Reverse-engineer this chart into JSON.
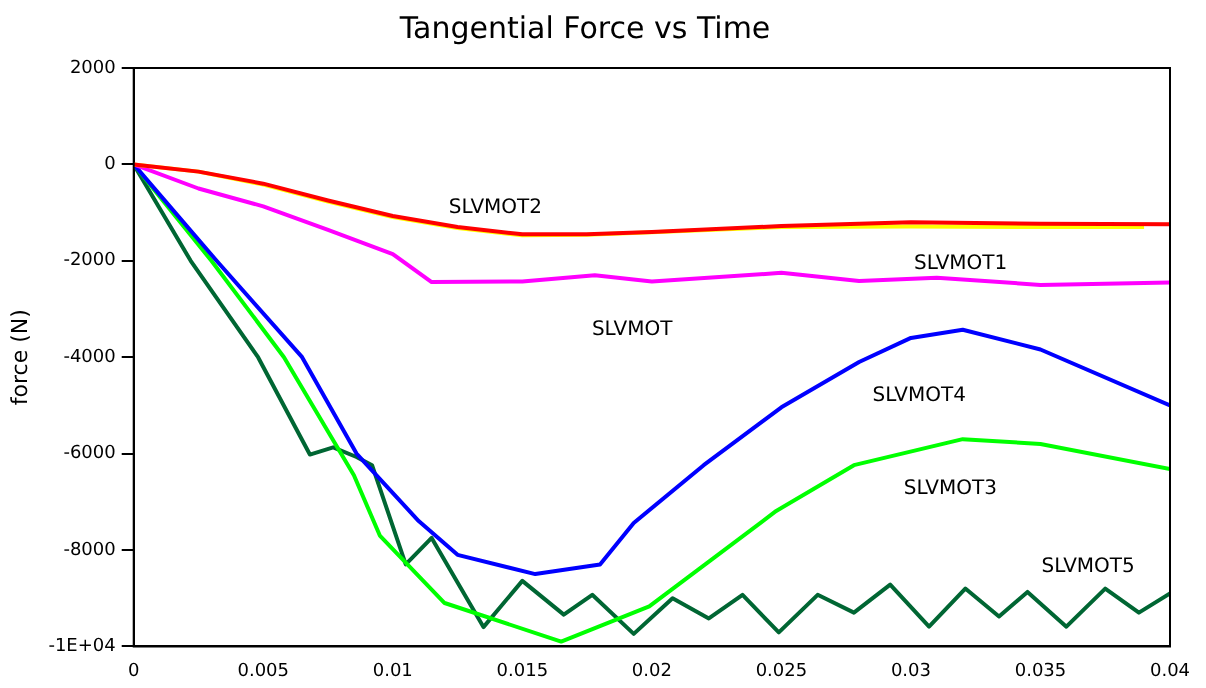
{
  "chart_data": {
    "type": "line",
    "title": "Tangential Force vs Time",
    "ylabel": "force (N)",
    "xlim": [
      0,
      0.04
    ],
    "ylim": [
      -10000,
      2000
    ],
    "xticks": [
      0,
      0.005,
      0.01,
      0.015,
      0.02,
      0.025,
      0.03,
      0.035,
      0.04
    ],
    "yticks": [
      {
        "value": -10000,
        "label": "-1E+04"
      },
      -8000,
      -6000,
      -4000,
      -2000,
      0,
      2000
    ],
    "grid": false,
    "legend": false,
    "marker": "none",
    "line_style": "solid",
    "series": [
      {
        "color": "#ff0000",
        "x": [
          0,
          0.0025,
          0.005,
          0.0075,
          0.01,
          0.0125,
          0.015,
          0.0175,
          0.02,
          0.025,
          0.03,
          0.035,
          0.04
        ],
        "values": [
          0,
          -150,
          -400,
          -750,
          -1070,
          -1300,
          -1450,
          -1450,
          -1400,
          -1280,
          -1200,
          -1230,
          -1240
        ]
      },
      {
        "color": "#ffff00",
        "x": [
          0,
          0.0025,
          0.005,
          0.0075,
          0.01,
          0.0125,
          0.015,
          0.0175,
          0.02,
          0.025,
          0.03,
          0.035,
          0.039
        ],
        "values": [
          0,
          -150,
          -420,
          -770,
          -1090,
          -1320,
          -1470,
          -1460,
          -1410,
          -1300,
          -1290,
          -1300,
          -1300
        ]
      },
      {
        "color": "#ff00ff",
        "x": [
          0,
          0.0025,
          0.005,
          0.0075,
          0.01,
          0.0115,
          0.015,
          0.0178,
          0.02,
          0.025,
          0.028,
          0.031,
          0.035,
          0.04
        ],
        "values": [
          0,
          -500,
          -870,
          -1360,
          -1860,
          -2440,
          -2430,
          -2300,
          -2430,
          -2250,
          -2420,
          -2350,
          -2500,
          -2450
        ]
      },
      {
        "color": "#0000ff",
        "x": [
          0,
          0.0032,
          0.0065,
          0.0086,
          0.0098,
          0.011,
          0.0125,
          0.0155,
          0.018,
          0.0193,
          0.022,
          0.025,
          0.028,
          0.03,
          0.032,
          0.035,
          0.04
        ],
        "values": [
          0,
          -2000,
          -4000,
          -6000,
          -6700,
          -7400,
          -8100,
          -8500,
          -8300,
          -7440,
          -6240,
          -5040,
          -4100,
          -3600,
          -3430,
          -3840,
          -5000
        ]
      },
      {
        "color": "#00ff00",
        "x": [
          0,
          0.003,
          0.0058,
          0.0085,
          0.0095,
          0.012,
          0.0165,
          0.0199,
          0.0248,
          0.0278,
          0.032,
          0.035,
          0.04
        ],
        "values": [
          0,
          -2000,
          -4000,
          -6450,
          -7700,
          -9100,
          -9900,
          -9170,
          -7190,
          -6240,
          -5700,
          -5800,
          -6320
        ]
      },
      {
        "color": "#006633",
        "x": [
          0,
          0.0022,
          0.0048,
          0.0068,
          0.0077,
          0.0086,
          0.0092,
          0.0105,
          0.0115,
          0.0135,
          0.015,
          0.0166,
          0.0177,
          0.0193,
          0.0208,
          0.0222,
          0.0235,
          0.0249,
          0.0264,
          0.0278,
          0.0292,
          0.0307,
          0.0321,
          0.0334,
          0.0345,
          0.036,
          0.0375,
          0.0388,
          0.04
        ],
        "values": [
          0,
          -2000,
          -4000,
          -6020,
          -5870,
          -6070,
          -6240,
          -8300,
          -7750,
          -9600,
          -8640,
          -9340,
          -8930,
          -9740,
          -9000,
          -9420,
          -8930,
          -9710,
          -8930,
          -9300,
          -8720,
          -9590,
          -8800,
          -9380,
          -8870,
          -9590,
          -8800,
          -9300,
          -8900
        ]
      }
    ],
    "annotations": [
      "SLVMOT2",
      "SLVMOT1",
      "SLVMOT",
      "SLVMOT4",
      "SLVMOT3",
      "SLVMOT5"
    ]
  }
}
